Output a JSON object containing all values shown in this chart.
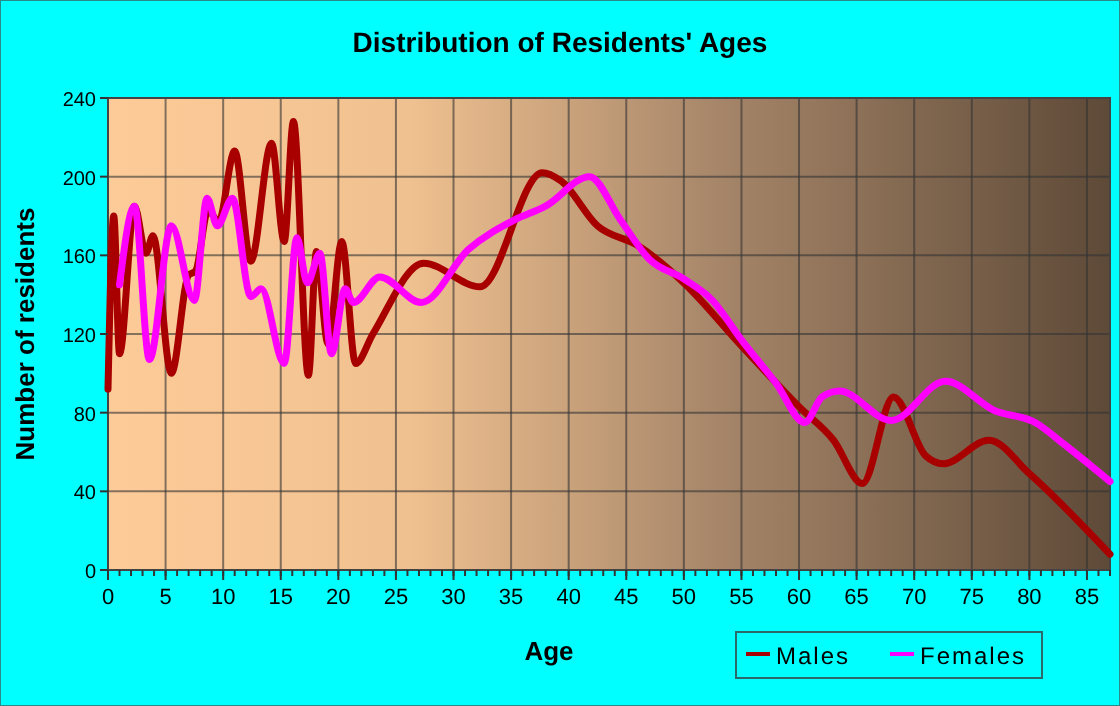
{
  "chart_data": {
    "type": "line",
    "title": "Distribution of Residents' Ages",
    "xlabel": "Age",
    "ylabel": "Number of residents",
    "xlim": [
      0,
      87
    ],
    "ylim": [
      0,
      240
    ],
    "xticks": [
      0,
      5,
      10,
      15,
      20,
      25,
      30,
      35,
      40,
      45,
      50,
      55,
      60,
      65,
      70,
      75,
      80,
      85
    ],
    "yticks": [
      0,
      40,
      80,
      120,
      160,
      200,
      240
    ],
    "grid": true,
    "legend": "bottom right",
    "series": [
      {
        "name": "Males",
        "color": "#a80000",
        "x": [
          0,
          0.5,
          1,
          2.3,
          3.3,
          3.9,
          5.5,
          7,
          7.6,
          8.7,
          9.6,
          11,
          12.4,
          14.2,
          15.3,
          16.1,
          17.4,
          18.1,
          19.1,
          20.3,
          21.5,
          23,
          27.4,
          32.3,
          37.7,
          39.3,
          42.5,
          46,
          50,
          55,
          60,
          63,
          65.5,
          68.2,
          71,
          72.5,
          76.5,
          80,
          87
        ],
        "values": [
          92,
          180,
          110,
          185,
          161,
          170,
          100,
          150,
          152,
          183,
          177,
          213,
          157,
          217,
          167,
          228,
          99,
          162,
          115,
          167,
          105,
          120,
          156,
          144,
          202,
          198,
          175,
          165,
          146,
          114,
          83,
          66,
          44,
          88,
          58,
          54,
          66,
          49,
          8
        ]
      },
      {
        "name": "Females",
        "color": "#ff00ff",
        "x": [
          1,
          2.3,
          3.6,
          5.5,
          7.5,
          8.6,
          9.5,
          10.8,
          12.4,
          13.3,
          15.3,
          16.4,
          17.3,
          18.4,
          19.4,
          20.6,
          21.3,
          23.6,
          27.2,
          31.3,
          35.3,
          38,
          41.8,
          44.5,
          47,
          50,
          52.5,
          55,
          58,
          60.5,
          62,
          63.5,
          68,
          72.7,
          77,
          80.5,
          83,
          87
        ],
        "values": [
          145,
          185,
          107,
          175,
          137,
          189,
          175,
          189,
          139,
          143,
          105,
          169,
          146,
          161,
          110,
          143,
          136,
          149,
          136,
          163,
          178,
          185,
          200,
          178,
          158,
          148,
          137,
          117,
          95,
          75,
          88,
          91,
          76,
          96,
          81,
          75,
          64,
          45
        ]
      }
    ]
  }
}
